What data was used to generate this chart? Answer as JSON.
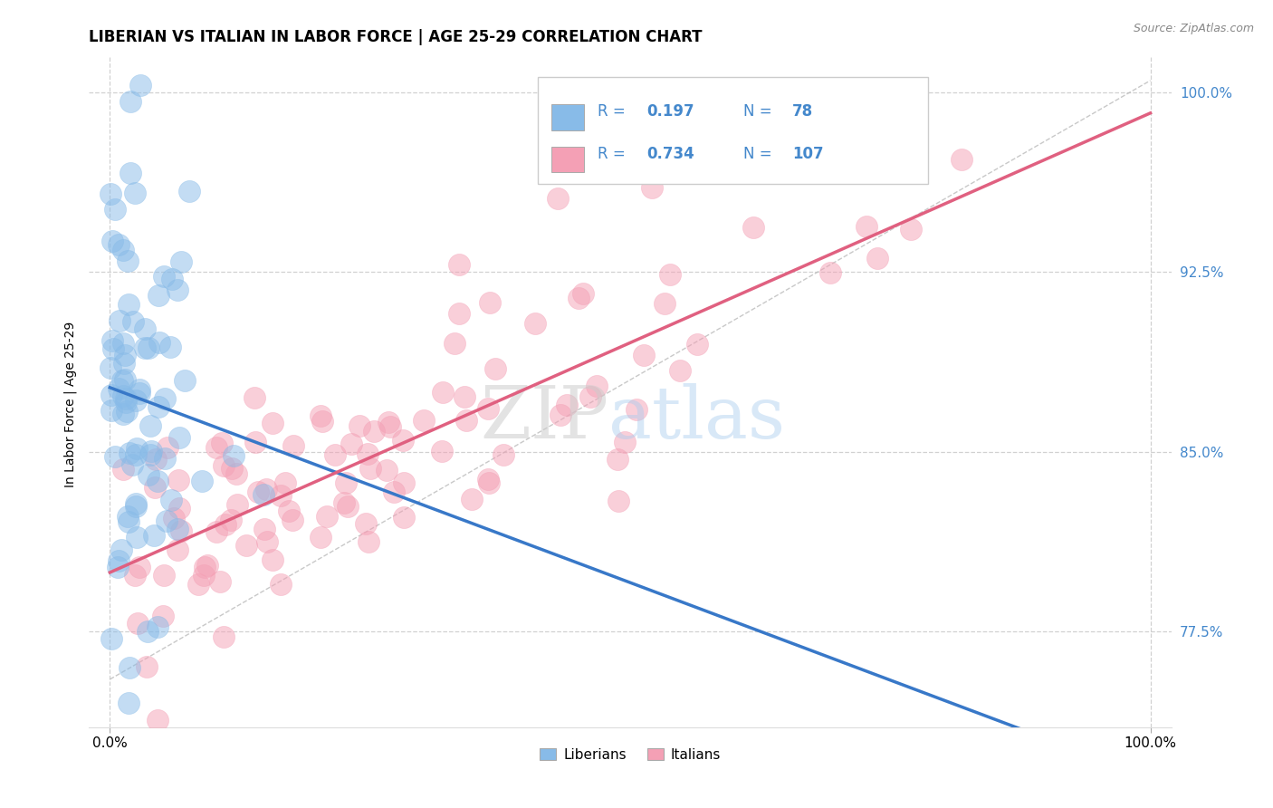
{
  "title": "LIBERIAN VS ITALIAN IN LABOR FORCE | AGE 25-29 CORRELATION CHART",
  "ylabel": "In Labor Force | Age 25-29",
  "source_text": "Source: ZipAtlas.com",
  "xlim": [
    -0.02,
    1.02
  ],
  "ylim": [
    0.735,
    1.015
  ],
  "yticks": [
    0.775,
    0.85,
    0.925,
    1.0
  ],
  "ytick_labels": [
    "77.5%",
    "85.0%",
    "92.5%",
    "100.0%"
  ],
  "xtick_labels": [
    "0.0%",
    "100.0%"
  ],
  "blue_R": 0.197,
  "blue_N": 78,
  "pink_R": 0.734,
  "pink_N": 107,
  "blue_color": "#88BBE8",
  "pink_color": "#F4A0B5",
  "blue_line_color": "#3878C8",
  "pink_line_color": "#E06080",
  "diag_color": "#BBBBBB",
  "background_color": "#FFFFFF",
  "title_fontsize": 12,
  "axis_label_fontsize": 10,
  "ytick_color": "#4488CC"
}
